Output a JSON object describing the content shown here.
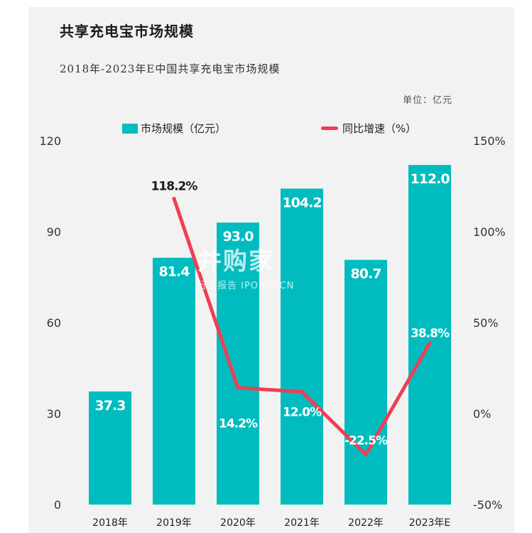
{
  "header": {
    "title": "共享充电宝市场规模",
    "subtitle": "2018年-2023年E中国共享充电宝市场规模",
    "unit": "单位：亿元"
  },
  "colors": {
    "bar": "#00bcbf",
    "line": "#ef3e55",
    "axis_text": "#333333"
  },
  "watermark": {
    "main": "并购家",
    "sub": "行业报告 IPOIPO.CN"
  },
  "chart_data": {
    "type": "bar",
    "categories": [
      "2018年",
      "2019年",
      "2020年",
      "2021年",
      "2022年",
      "2023年E"
    ],
    "series": [
      {
        "name": "市场规模（亿元）",
        "type": "bar",
        "axis": "left",
        "values": [
          37.3,
          81.4,
          93.0,
          104.2,
          80.7,
          112.0
        ],
        "labels": [
          "37.3",
          "81.4",
          "93.0",
          "104.2",
          "80.7",
          "112.0"
        ]
      },
      {
        "name": "同比增速（%）",
        "type": "line",
        "axis": "right",
        "values": [
          null,
          118.2,
          14.2,
          12.0,
          -22.5,
          38.8
        ],
        "labels": [
          null,
          "118.2%",
          "14.2%",
          "12.0%",
          "-22.5%",
          "38.8%"
        ]
      }
    ],
    "y_left": {
      "min": 0,
      "max": 120,
      "ticks": [
        "0",
        "30",
        "60",
        "90",
        "120"
      ]
    },
    "y_right": {
      "min": -50,
      "max": 150,
      "ticks": [
        "-50%",
        "0%",
        "50%",
        "100%",
        "150%"
      ]
    },
    "legend": "top-center",
    "grid": false
  }
}
